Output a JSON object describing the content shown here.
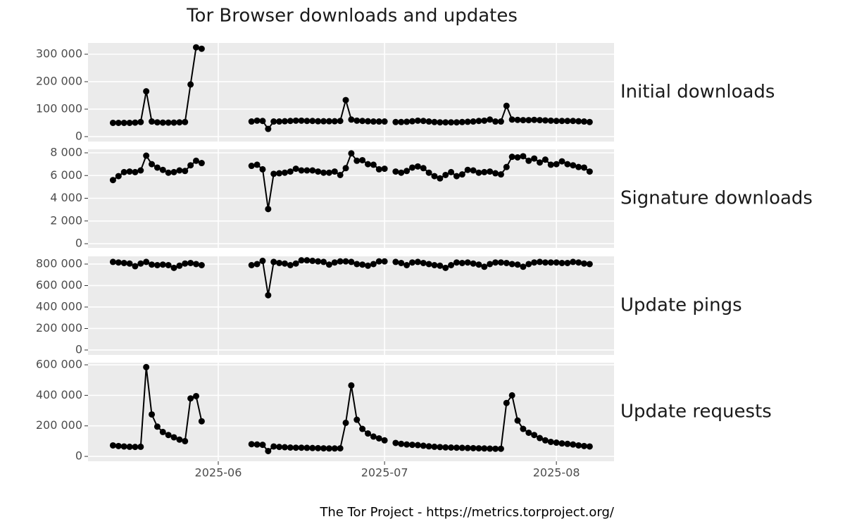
{
  "chart_data": {
    "type": "line",
    "title": "Tor Browser downloads and updates",
    "caption": "The Tor Project - https://metrics.torproject.org/",
    "color": "#000000",
    "grid": true,
    "x": [
      0,
      1,
      2,
      3,
      4,
      5,
      6,
      7,
      8,
      9,
      10,
      11,
      12,
      13,
      14,
      15,
      16,
      17,
      18,
      19,
      20,
      21,
      22,
      23,
      24,
      25,
      26,
      27,
      28,
      29,
      30,
      31,
      32,
      33,
      34,
      35,
      36,
      37,
      38,
      39,
      40,
      41,
      42,
      43,
      44,
      45,
      46,
      47,
      48,
      49,
      50,
      51,
      52,
      53,
      54,
      55,
      56,
      57,
      58,
      59,
      60,
      61,
      62,
      63,
      64,
      65,
      66,
      67,
      68,
      69,
      70,
      71,
      72,
      73,
      74,
      75,
      76,
      77,
      78,
      79,
      80,
      81,
      82,
      83,
      84,
      85,
      86
    ],
    "xlim": [
      -4.5,
      90.4
    ],
    "xticks": [
      {
        "value": 19,
        "label": "2025-06"
      },
      {
        "value": 49,
        "label": "2025-07"
      },
      {
        "value": 80,
        "label": "2025-08"
      }
    ],
    "facets": [
      {
        "label": "Initial downloads",
        "ylim": [
          -18000,
          341000
        ],
        "yticks": [
          0,
          {
            "value": 100000,
            "label": "100 000"
          },
          {
            "value": 200000,
            "label": "200 000"
          },
          {
            "value": 300000,
            "label": "300 000"
          }
        ],
        "values": [
          50000,
          50000,
          50000,
          50000,
          51000,
          53000,
          165000,
          55000,
          52000,
          51000,
          51000,
          51000,
          52000,
          53000,
          190000,
          325000,
          320000,
          null,
          null,
          null,
          null,
          null,
          null,
          null,
          null,
          55000,
          58000,
          57000,
          28000,
          55000,
          55000,
          56000,
          57000,
          58000,
          58000,
          57000,
          57000,
          56000,
          56000,
          56000,
          56000,
          57000,
          133000,
          62000,
          58000,
          57000,
          56000,
          55000,
          55000,
          55000,
          null,
          53000,
          53000,
          54000,
          56000,
          58000,
          57000,
          55000,
          53000,
          52000,
          52000,
          52000,
          52000,
          53000,
          54000,
          55000,
          57000,
          58000,
          62000,
          55000,
          55000,
          112000,
          62000,
          61000,
          60000,
          60000,
          61000,
          60000,
          59000,
          58000,
          57000,
          57000,
          57000,
          57000,
          56000,
          55000,
          53000
        ]
      },
      {
        "label": "Signature downloads",
        "ylim": [
          -370,
          8310
        ],
        "yticks": [
          0,
          {
            "value": 2000,
            "label": "2 000"
          },
          {
            "value": 4000,
            "label": "4 000"
          },
          {
            "value": 6000,
            "label": "6 000"
          },
          {
            "value": 8000,
            "label": "8 000"
          }
        ],
        "values": [
          5600,
          5950,
          6300,
          6350,
          6300,
          6450,
          7750,
          7000,
          6700,
          6500,
          6250,
          6300,
          6450,
          6400,
          6900,
          7300,
          7100,
          null,
          null,
          null,
          null,
          null,
          null,
          null,
          null,
          6850,
          6950,
          6550,
          3050,
          6150,
          6200,
          6250,
          6350,
          6600,
          6450,
          6450,
          6450,
          6350,
          6250,
          6250,
          6350,
          6050,
          6650,
          7950,
          7300,
          7350,
          7000,
          6950,
          6550,
          6600,
          null,
          6350,
          6250,
          6400,
          6700,
          6800,
          6650,
          6250,
          5950,
          5750,
          6050,
          6300,
          5950,
          6100,
          6500,
          6450,
          6250,
          6300,
          6350,
          6200,
          6100,
          6750,
          7650,
          7600,
          7700,
          7300,
          7500,
          7150,
          7400,
          6950,
          7000,
          7250,
          7000,
          6900,
          6750,
          6700,
          6350
        ]
      },
      {
        "label": "Update pings",
        "ylim": [
          -46000,
          872000
        ],
        "yticks": [
          0,
          {
            "value": 200000,
            "label": "200 000"
          },
          {
            "value": 400000,
            "label": "400 000"
          },
          {
            "value": 600000,
            "label": "600 000"
          },
          {
            "value": 800000,
            "label": "800 000"
          }
        ],
        "values": [
          820000,
          815000,
          810000,
          805000,
          780000,
          805000,
          820000,
          795000,
          790000,
          795000,
          790000,
          765000,
          785000,
          805000,
          810000,
          800000,
          790000,
          null,
          null,
          null,
          null,
          null,
          null,
          null,
          null,
          790000,
          800000,
          830000,
          510000,
          820000,
          810000,
          805000,
          790000,
          805000,
          835000,
          835000,
          830000,
          825000,
          820000,
          795000,
          815000,
          825000,
          825000,
          820000,
          800000,
          795000,
          785000,
          800000,
          825000,
          825000,
          null,
          820000,
          810000,
          790000,
          815000,
          820000,
          810000,
          800000,
          790000,
          785000,
          765000,
          790000,
          815000,
          810000,
          815000,
          805000,
          795000,
          775000,
          800000,
          815000,
          815000,
          810000,
          800000,
          795000,
          775000,
          800000,
          815000,
          820000,
          815000,
          815000,
          815000,
          810000,
          810000,
          820000,
          815000,
          805000,
          800000
        ]
      },
      {
        "label": "Update requests",
        "ylim": [
          -32000,
          614000
        ],
        "yticks": [
          0,
          {
            "value": 200000,
            "label": "200 000"
          },
          {
            "value": 400000,
            "label": "400 000"
          },
          {
            "value": 600000,
            "label": "600 000"
          }
        ],
        "values": [
          72000,
          68000,
          65000,
          63000,
          62000,
          63000,
          585000,
          275000,
          195000,
          160000,
          140000,
          125000,
          110000,
          100000,
          380000,
          395000,
          230000,
          null,
          null,
          null,
          null,
          null,
          null,
          null,
          null,
          80000,
          78000,
          76000,
          35000,
          65000,
          62000,
          60000,
          58000,
          57000,
          57000,
          56000,
          55000,
          54000,
          53000,
          52000,
          52000,
          53000,
          220000,
          465000,
          240000,
          180000,
          150000,
          130000,
          118000,
          105000,
          null,
          88000,
          82000,
          78000,
          76000,
          74000,
          70000,
          66000,
          63000,
          61000,
          59000,
          58000,
          57000,
          56000,
          55000,
          54000,
          53000,
          52000,
          51000,
          50000,
          50000,
          350000,
          400000,
          235000,
          180000,
          155000,
          140000,
          120000,
          105000,
          95000,
          90000,
          85000,
          82000,
          78000,
          72000,
          68000,
          65000
        ]
      }
    ]
  }
}
